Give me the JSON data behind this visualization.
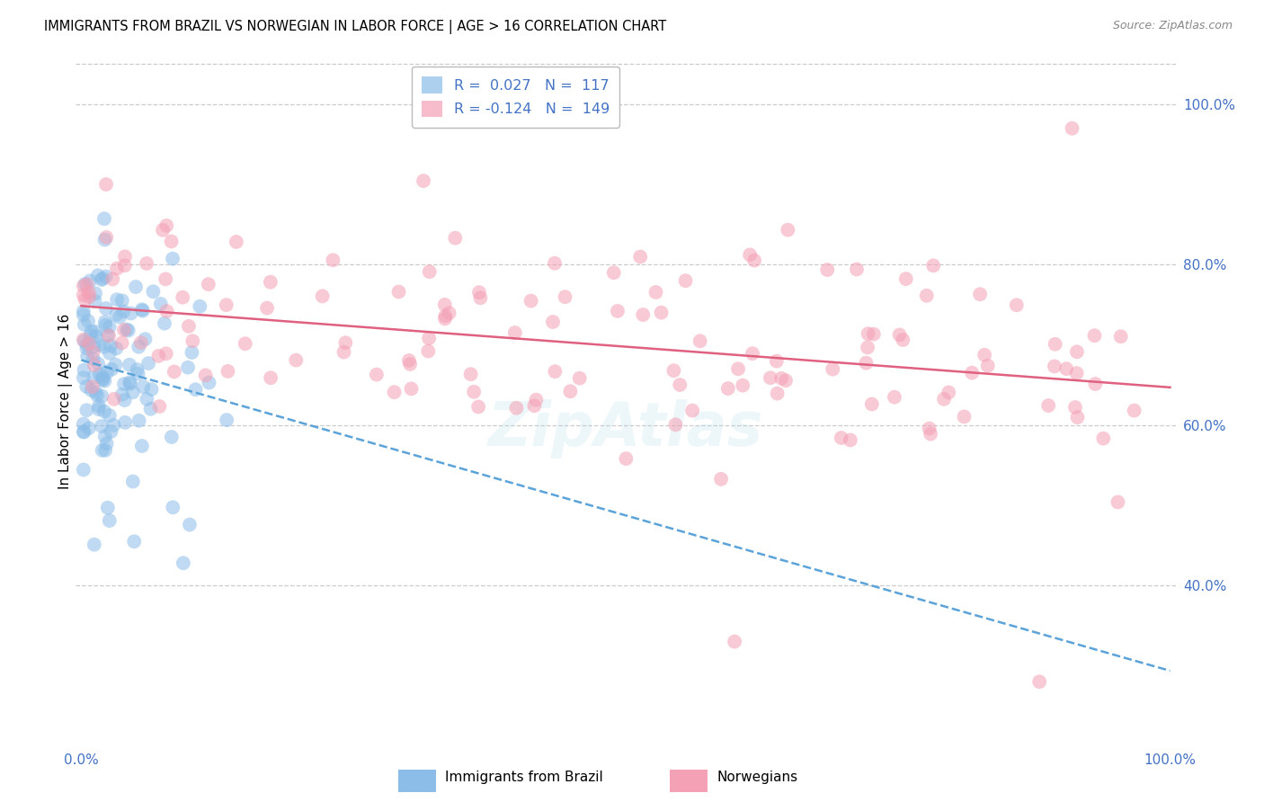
{
  "title": "IMMIGRANTS FROM BRAZIL VS NORWEGIAN IN LABOR FORCE | AGE > 16 CORRELATION CHART",
  "source": "Source: ZipAtlas.com",
  "ylabel": "In Labor Force | Age > 16",
  "brazil_R": 0.027,
  "brazil_N": 117,
  "norwegian_R": -0.124,
  "norwegian_N": 149,
  "brazil_color": "#8bbde8",
  "norwegian_color": "#f4a0b5",
  "brazil_line_color": "#5ba3d9",
  "norwegian_line_color": "#e06080",
  "axis_label_color": "#4472c4",
  "background_color": "#ffffff",
  "grid_color": "#cccccc",
  "watermark": "ZipAtlas",
  "ylim_low": 0.2,
  "ylim_high": 1.06,
  "yticks": [
    0.4,
    0.6,
    0.8,
    1.0
  ],
  "ytick_labels": [
    "40.0%",
    "60.0%",
    "80.0%",
    "100.0%"
  ]
}
